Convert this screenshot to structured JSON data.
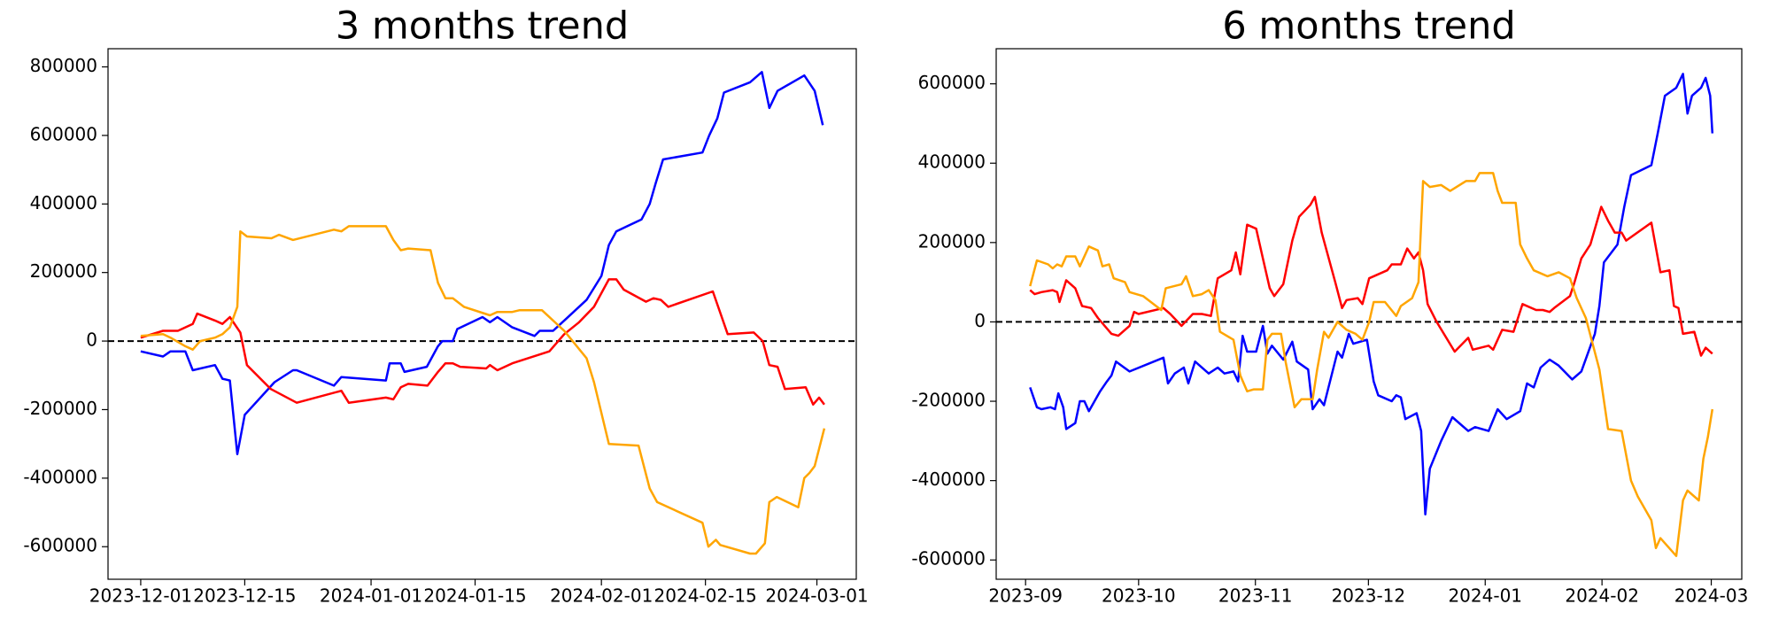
{
  "chart_data": [
    {
      "type": "line",
      "title": "3 months trend",
      "xlim": [
        -4.4,
        96.3
      ],
      "ylim": [
        -695000,
        853000
      ],
      "xticks": [
        {
          "value": 0,
          "label": "2023-12-01"
        },
        {
          "value": 14,
          "label": "2023-12-15"
        },
        {
          "value": 31,
          "label": "2024-01-01"
        },
        {
          "value": 45,
          "label": "2024-01-15"
        },
        {
          "value": 62,
          "label": "2024-02-01"
        },
        {
          "value": 76,
          "label": "2024-02-15"
        },
        {
          "value": 91,
          "label": "2024-03-01"
        }
      ],
      "yticks": [
        -600000,
        -400000,
        -200000,
        0,
        200000,
        400000,
        600000,
        800000
      ],
      "hline": 0,
      "series": [
        {
          "color": "#0000ff",
          "x": [
            0,
            3,
            4,
            6,
            7,
            10,
            11,
            12,
            13,
            14,
            18,
            20.5,
            21,
            26,
            27,
            33,
            33.5,
            35,
            35.5,
            38.5,
            40,
            40.6,
            42,
            42.6,
            46,
            47,
            48,
            50,
            53,
            53.7,
            55.5,
            57,
            60,
            62,
            63,
            64,
            67.4,
            68.5,
            69.3,
            70.3,
            75.6,
            76.5,
            77.6,
            78.5,
            82,
            83.6,
            84.6,
            85.7,
            89.3,
            90.7,
            91.8
          ],
          "values": [
            -30000,
            -45000,
            -30000,
            -30000,
            -85000,
            -70000,
            -110000,
            -115000,
            -330000,
            -215000,
            -120000,
            -85000,
            -85000,
            -130000,
            -105000,
            -115000,
            -65000,
            -65000,
            -90000,
            -75000,
            -15000,
            0,
            0,
            35000,
            70000,
            55000,
            70000,
            40000,
            15000,
            30000,
            30000,
            60000,
            120000,
            190000,
            280000,
            320000,
            355000,
            400000,
            460000,
            530000,
            550000,
            600000,
            650000,
            725000,
            755000,
            785000,
            680000,
            730000,
            775000,
            730000,
            630000
          ]
        },
        {
          "color": "#ff0000",
          "x": [
            0,
            3,
            5,
            7,
            7.6,
            10,
            11,
            12,
            13.4,
            14.3,
            17.5,
            21,
            27,
            28,
            33,
            34,
            35,
            36,
            38.6,
            40,
            41,
            42,
            43,
            46.5,
            47,
            48,
            50,
            55,
            57,
            59,
            61,
            63,
            64,
            65,
            68,
            69,
            70,
            71,
            77,
            79,
            82.5,
            83.7,
            84.6,
            85.7,
            86.7,
            89.5,
            90.5,
            91.3,
            92
          ],
          "values": [
            10000,
            30000,
            30000,
            50000,
            80000,
            60000,
            50000,
            70000,
            25000,
            -70000,
            -140000,
            -180000,
            -145000,
            -180000,
            -165000,
            -170000,
            -135000,
            -125000,
            -130000,
            -90000,
            -65000,
            -65000,
            -75000,
            -80000,
            -70000,
            -85000,
            -65000,
            -30000,
            20000,
            55000,
            100000,
            180000,
            180000,
            150000,
            115000,
            125000,
            120000,
            100000,
            145000,
            20000,
            25000,
            0,
            -70000,
            -75000,
            -140000,
            -135000,
            -185000,
            -165000,
            -185000
          ]
        },
        {
          "color": "#ffa500",
          "x": [
            0,
            3,
            4,
            6,
            7,
            8,
            10,
            11,
            12,
            13,
            13.4,
            14.3,
            17.6,
            18.6,
            20.5,
            26,
            27,
            28,
            33,
            34,
            35,
            36,
            39,
            40,
            41,
            42,
            43.5,
            47,
            48,
            50,
            51,
            54,
            57,
            60,
            61,
            63,
            67,
            68.5,
            69.5,
            75.6,
            76.4,
            77.4,
            78,
            82,
            82.8,
            84,
            84.6,
            85.6,
            88.5,
            89.3,
            90,
            90.7,
            92
          ],
          "values": [
            15000,
            20000,
            10000,
            -15000,
            -25000,
            0,
            10000,
            20000,
            40000,
            100000,
            320000,
            305000,
            300000,
            310000,
            295000,
            325000,
            320000,
            335000,
            335000,
            295000,
            265000,
            270000,
            265000,
            170000,
            125000,
            125000,
            100000,
            75000,
            85000,
            85000,
            90000,
            90000,
            30000,
            -50000,
            -120000,
            -300000,
            -305000,
            -430000,
            -470000,
            -530000,
            -600000,
            -580000,
            -595000,
            -620000,
            -620000,
            -590000,
            -470000,
            -455000,
            -485000,
            -400000,
            -385000,
            -365000,
            -255000
          ]
        }
      ]
    },
    {
      "type": "line",
      "title": "6 months trend",
      "xlim": [
        -7.8,
        190.1
      ],
      "ylim": [
        -648600,
        688500
      ],
      "xticks": [
        {
          "value": 0,
          "label": "2023-09"
        },
        {
          "value": 30,
          "label": "2023-10"
        },
        {
          "value": 61,
          "label": "2023-11"
        },
        {
          "value": 91,
          "label": "2023-12"
        },
        {
          "value": 122,
          "label": "2024-01"
        },
        {
          "value": 153,
          "label": "2024-02"
        },
        {
          "value": 182,
          "label": "2024-03"
        }
      ],
      "yticks": [
        -600000,
        -400000,
        -200000,
        0,
        200000,
        400000,
        600000
      ],
      "hline": 0,
      "series": [
        {
          "color": "#0000ff",
          "x": [
            1.2,
            3,
            4.2,
            6.6,
            7.8,
            8.7,
            10,
            10.8,
            13.2,
            14.4,
            15.6,
            16.8,
            19.8,
            21.6,
            22.8,
            24,
            27.6,
            36.6,
            37.8,
            39.6,
            42,
            43.2,
            45,
            48.6,
            51,
            52.8,
            55.2,
            56.4,
            57.6,
            58.8,
            61.2,
            63,
            64.2,
            65.4,
            68.4,
            70.8,
            72,
            75,
            76.2,
            78,
            79.2,
            82.8,
            84,
            85.8,
            87,
            90.6,
            92.4,
            93.6,
            97.2,
            98.4,
            99.6,
            100.8,
            103.8,
            105,
            106.1,
            107.3,
            110.3,
            113.3,
            117.5,
            119.3,
            122.9,
            125.3,
            127.7,
            131.3,
            133.1,
            134.9,
            136.7,
            139.1,
            141.5,
            145.1,
            147.5,
            151.1,
            152.3,
            153.5,
            157.1,
            158.9,
            160.7,
            166.1,
            167.9,
            169.7,
            172.7,
            174.5,
            175.7,
            176.9,
            179.3,
            180.5,
            181.7,
            182.3
          ],
          "values": [
            -165000,
            -215000,
            -220000,
            -215000,
            -220000,
            -180000,
            -215000,
            -270000,
            -255000,
            -200000,
            -200000,
            -225000,
            -175000,
            -150000,
            -135000,
            -100000,
            -125000,
            -90000,
            -155000,
            -130000,
            -115000,
            -155000,
            -100000,
            -130000,
            -115000,
            -130000,
            -125000,
            -150000,
            -35000,
            -75000,
            -75000,
            -10000,
            -80000,
            -60000,
            -95000,
            -50000,
            -100000,
            -120000,
            -220000,
            -195000,
            -210000,
            -75000,
            -90000,
            -30000,
            -55000,
            -45000,
            -150000,
            -185000,
            -200000,
            -185000,
            -190000,
            -245000,
            -230000,
            -275000,
            -485000,
            -370000,
            -300000,
            -240000,
            -275000,
            -265000,
            -275000,
            -220000,
            -245000,
            -225000,
            -155000,
            -165000,
            -115000,
            -95000,
            -110000,
            -145000,
            -125000,
            -30000,
            40000,
            150000,
            195000,
            290000,
            370000,
            395000,
            480000,
            570000,
            590000,
            625000,
            525000,
            570000,
            590000,
            615000,
            570000,
            475000
          ]
        },
        {
          "color": "#ff0000",
          "x": [
            1.2,
            2.4,
            4.2,
            7.2,
            8.4,
            9,
            10.8,
            13.2,
            15,
            17.4,
            19.2,
            22.8,
            24.6,
            27.6,
            28.8,
            30,
            36.6,
            38.4,
            41.4,
            44.4,
            46.8,
            49.2,
            51,
            54.6,
            55.8,
            57,
            58.8,
            61.2,
            63,
            64.8,
            66,
            68.4,
            70.8,
            72.6,
            75.6,
            76.8,
            78.6,
            82.2,
            84,
            85.2,
            88.2,
            89.4,
            91.2,
            96,
            97.2,
            99.6,
            101.3,
            103.1,
            104.3,
            105.5,
            106.7,
            109.1,
            113.9,
            117.5,
            118.7,
            122.9,
            124.1,
            126.5,
            129.5,
            131.9,
            135.5,
            137.3,
            139.1,
            140.3,
            144.5,
            145.7,
            147.5,
            149.9,
            152.8,
            154.6,
            156.4,
            158.2,
            159.4,
            166.1,
            168.5,
            170.9,
            172.1,
            173.3,
            174.5,
            177.5,
            179.3,
            180.5,
            182.3
          ],
          "values": [
            80000,
            70000,
            75000,
            80000,
            75000,
            50000,
            105000,
            85000,
            40000,
            35000,
            10000,
            -30000,
            -35000,
            -10000,
            25000,
            20000,
            35000,
            20000,
            -10000,
            20000,
            20000,
            15000,
            110000,
            130000,
            175000,
            120000,
            245000,
            235000,
            160000,
            85000,
            65000,
            95000,
            205000,
            265000,
            295000,
            315000,
            225000,
            100000,
            35000,
            55000,
            60000,
            45000,
            110000,
            130000,
            145000,
            145000,
            185000,
            160000,
            175000,
            130000,
            45000,
            0,
            -75000,
            -40000,
            -70000,
            -60000,
            -70000,
            -20000,
            -25000,
            45000,
            30000,
            30000,
            25000,
            35000,
            65000,
            100000,
            160000,
            195000,
            290000,
            255000,
            225000,
            225000,
            205000,
            250000,
            125000,
            130000,
            40000,
            35000,
            -30000,
            -25000,
            -85000,
            -65000,
            -80000
          ]
        },
        {
          "color": "#ffa500",
          "x": [
            1.2,
            3,
            6,
            7.2,
            8.4,
            9.6,
            10.8,
            13.2,
            14.4,
            16.8,
            19.2,
            20.4,
            22.2,
            23.4,
            26.4,
            27.6,
            31.2,
            36,
            37.2,
            41.4,
            42.6,
            44.4,
            46.8,
            48.6,
            50.4,
            51.6,
            55.2,
            57,
            58.8,
            60.6,
            63,
            64.2,
            65.4,
            67.8,
            69,
            71.4,
            73.2,
            76.2,
            77.4,
            79.2,
            80.4,
            82.8,
            85.2,
            87.6,
            89.4,
            91.2,
            92.4,
            95.4,
            98.4,
            99.6,
            102.6,
            104.3,
            105.5,
            107.3,
            110.3,
            112.7,
            116.9,
            119.3,
            120.5,
            124.1,
            125.3,
            126.5,
            130.1,
            131.3,
            133.1,
            134.9,
            138.5,
            141.5,
            144.5,
            146.3,
            148.7,
            152.3,
            154.6,
            158.2,
            160.7,
            162.5,
            166.1,
            167.3,
            168.5,
            172.7,
            174.5,
            175.7,
            178.7,
            179.9,
            181.1,
            182.3
          ],
          "values": [
            90000,
            155000,
            145000,
            135000,
            145000,
            140000,
            165000,
            165000,
            140000,
            190000,
            180000,
            140000,
            145000,
            110000,
            100000,
            75000,
            65000,
            30000,
            85000,
            95000,
            115000,
            65000,
            70000,
            80000,
            55000,
            -25000,
            -45000,
            -135000,
            -175000,
            -170000,
            -170000,
            -45000,
            -30000,
            -30000,
            -100000,
            -215000,
            -195000,
            -195000,
            -120000,
            -25000,
            -40000,
            0,
            -20000,
            -30000,
            -45000,
            0,
            50000,
            50000,
            15000,
            40000,
            60000,
            100000,
            355000,
            340000,
            345000,
            330000,
            355000,
            355000,
            375000,
            375000,
            330000,
            300000,
            300000,
            195000,
            160000,
            130000,
            115000,
            125000,
            110000,
            60000,
            10000,
            -120000,
            -270000,
            -275000,
            -400000,
            -440000,
            -500000,
            -570000,
            -545000,
            -590000,
            -450000,
            -425000,
            -450000,
            -345000,
            -290000,
            -220000
          ]
        }
      ]
    }
  ]
}
